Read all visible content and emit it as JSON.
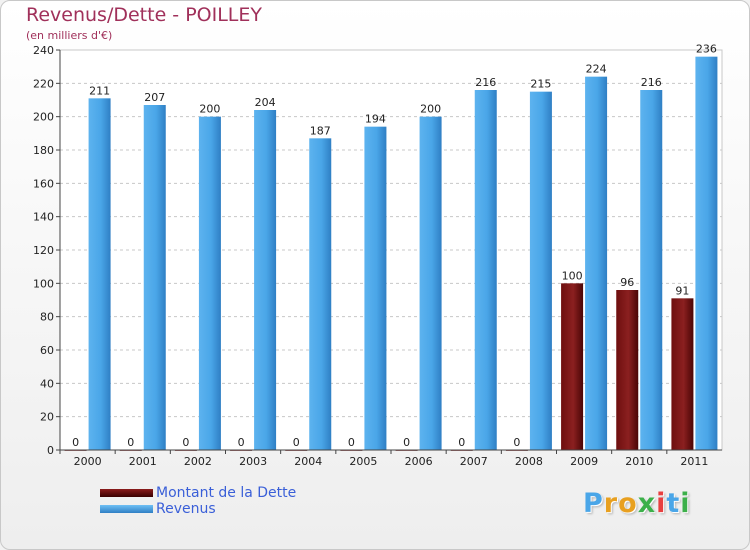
{
  "header": {
    "title": "Revenus/Dette - POILLEY",
    "subtitle": "(en milliers d'€)"
  },
  "chart_data": {
    "type": "bar",
    "title": "Revenus/Dette - POILLEY",
    "ylabel": "(en milliers d'€)",
    "xlabel": "",
    "categories": [
      "2000",
      "2001",
      "2002",
      "2003",
      "2004",
      "2005",
      "2006",
      "2007",
      "2008",
      "2009",
      "2010",
      "2011"
    ],
    "ylim": [
      0,
      240
    ],
    "yticks": [
      0,
      20,
      40,
      60,
      80,
      100,
      120,
      140,
      160,
      180,
      200,
      220,
      240
    ],
    "grid": "horizontal-dashed",
    "series": [
      {
        "name": "Montant de la Dette",
        "values": [
          0,
          0,
          0,
          0,
          0,
          0,
          0,
          0,
          0,
          100,
          96,
          91
        ],
        "color": "#8b1c1c"
      },
      {
        "name": "Revenus",
        "values": [
          211,
          207,
          200,
          204,
          187,
          194,
          200,
          216,
          215,
          224,
          216,
          236
        ],
        "color": "#4aa6e8"
      }
    ]
  },
  "legend": {
    "items": [
      {
        "label": "Montant de la Dette",
        "color": "#6b0a0a"
      },
      {
        "label": "Revenus",
        "color": "#4aa6e8"
      }
    ]
  },
  "logo": {
    "letters": [
      "P",
      "r",
      "o",
      "x",
      "i",
      "t",
      "i"
    ],
    "colors": [
      "#4aa6e8",
      "#e8a020",
      "#e8a020",
      "#3cb04a",
      "#e84040",
      "#4aa6e8",
      "#3cb04a"
    ]
  }
}
